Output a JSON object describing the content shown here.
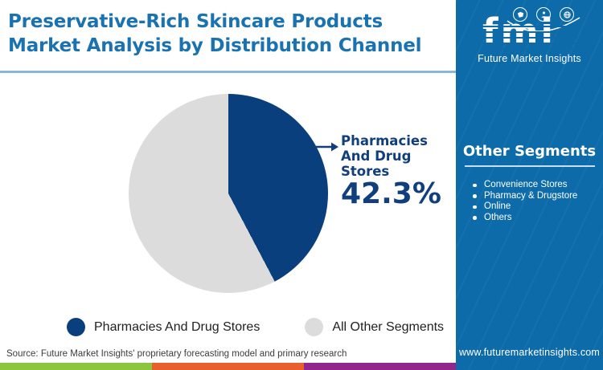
{
  "header": {
    "title": "Preservative-Rich Skincare Products Market Analysis by Distribution Channel"
  },
  "chart_data": {
    "type": "pie",
    "title": "Preservative-Rich Skincare Products Market Analysis by Distribution Channel",
    "slices": [
      {
        "label": "Pharmacies And Drug Stores",
        "value": 42.3,
        "color": "#093f7d"
      },
      {
        "label": "All Other Segments",
        "value": 57.7,
        "color": "#dcdcdc"
      }
    ],
    "start_angle_deg": 0,
    "direction": "clockwise",
    "callout": {
      "label": "Pharmacies And Drug Stores",
      "value": "42.3%"
    },
    "legend_position": "bottom"
  },
  "sidebar": {
    "logo": {
      "text": "fmi",
      "subtitle": "Future Market Insights",
      "icons": [
        "map-icon",
        "person-icon",
        "globe-icon"
      ]
    },
    "other_segments": {
      "heading": "Other Segments",
      "items": [
        "Convenience Stores",
        "Pharmacy & Drugstore",
        "Online",
        "Others"
      ]
    },
    "website": "www.futuremarketinsights.com"
  },
  "footer": {
    "source": "Source: Future Market Insights' proprietary forecasting model and primary research"
  },
  "colors": {
    "title_blue": "#1a72b1",
    "sidebar_blue": "#0e6ba9",
    "pie_navy": "#093f7d",
    "pie_gray": "#dcdcdc",
    "divider_blue": "#8db5d6",
    "strip_green": "#8cc63e",
    "strip_orange": "#e8612c",
    "strip_purple": "#91278d"
  }
}
